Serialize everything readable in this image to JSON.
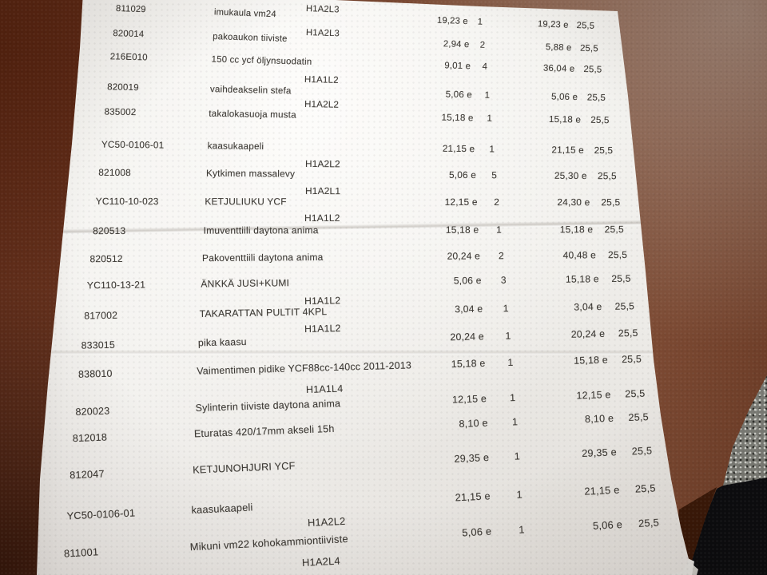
{
  "scene": {
    "description": "photo of printed parts list lying on a wooden table",
    "colors": {
      "paper": "#f2f1ee",
      "wood_dark": "#5e2b1a",
      "wood_mid": "#7a4733",
      "wood_light": "#93766a",
      "table_edge": "#46200f",
      "carpet_gray": "#7e807a",
      "dark_object": "#0b0d11",
      "print_text": "#3b3833"
    }
  },
  "document": {
    "language": "Finnish",
    "currency_mark": "e",
    "vat_rate_shown": "25,5",
    "rows": [
      {
        "code": "811029",
        "desc": "imukaula vm24",
        "loc": "H1A2L3",
        "unit": "19,23 e",
        "qty": "1",
        "total": "19,23 e",
        "vat": "25,5"
      },
      {
        "code": "820014",
        "desc": "pakoaukon tiiviste",
        "loc": "H1A2L3",
        "unit": "2,94 e",
        "qty": "2",
        "total": "5,88 e",
        "vat": "25,5"
      },
      {
        "code": "216E010",
        "desc": "150 cc ycf öljynsuodatin",
        "loc": "",
        "unit": "9,01 e",
        "qty": "4",
        "total": "36,04 e",
        "vat": "25,5"
      },
      {
        "code": "820019",
        "desc": "vaihdeakselin stefa",
        "loc": "H1A1L2",
        "unit": "5,06 e",
        "qty": "1",
        "total": "5,06 e",
        "vat": "25,5"
      },
      {
        "code": "835002",
        "desc": "takalokasuoja musta",
        "loc": "H1A2L2",
        "unit": "15,18 e",
        "qty": "1",
        "total": "15,18 e",
        "vat": "25,5"
      },
      {
        "code": "YC50-0106-01",
        "desc": "kaasukaapeli",
        "loc": "",
        "unit": "21,15 e",
        "qty": "1",
        "total": "21,15 e",
        "vat": "25,5"
      },
      {
        "code": "821008",
        "desc": "Kytkimen massalevy",
        "loc": "H1A2L2",
        "unit": "5,06 e",
        "qty": "5",
        "total": "25,30 e",
        "vat": "25,5"
      },
      {
        "code": "YC110-10-023",
        "desc": "KETJULIUKU YCF",
        "loc": "H1A2L1",
        "unit": "12,15 e",
        "qty": "2",
        "total": "24,30 e",
        "vat": "25,5"
      },
      {
        "code": "820513",
        "desc": "Imuventtiili daytona anima",
        "loc": "H1A1L2",
        "unit": "15,18 e",
        "qty": "1",
        "total": "15,18 e",
        "vat": "25,5"
      },
      {
        "code": "820512",
        "desc": "Pakoventtiili daytona anima",
        "loc": "",
        "unit": "20,24 e",
        "qty": "2",
        "total": "40,48 e",
        "vat": "25,5"
      },
      {
        "code": "YC110-13-21",
        "desc": "ÄNKKÄ JUSI+KUMI",
        "loc": "",
        "unit": "5,06 e",
        "qty": "3",
        "total": "15,18 e",
        "vat": "25,5"
      },
      {
        "code": "817002",
        "desc": "TAKARATTAN PULTIT 4KPL",
        "loc": "H1A1L2",
        "unit": "3,04 e",
        "qty": "1",
        "total": "3,04 e",
        "vat": "25,5"
      },
      {
        "code": "833015",
        "desc": "pika kaasu",
        "loc": "H1A1L2",
        "unit": "20,24 e",
        "qty": "1",
        "total": "20,24 e",
        "vat": "25,5"
      },
      {
        "code": "838010",
        "desc": "Vaimentimen pidike YCF88cc-140cc 2011-2013",
        "loc": "",
        "unit": "15,18 e",
        "qty": "1",
        "total": "15,18 e",
        "vat": "25,5"
      },
      {
        "code": "820023",
        "desc": "Sylinterin tiiviste daytona anima",
        "loc": "H1A1L4",
        "unit": "12,15 e",
        "qty": "1",
        "total": "12,15 e",
        "vat": "25,5"
      },
      {
        "code": "812018",
        "desc": "Eturatas 420/17mm akseli 15h",
        "loc": "",
        "unit": "8,10 e",
        "qty": "1",
        "total": "8,10 e",
        "vat": "25,5"
      },
      {
        "code": "812047",
        "desc": "KETJUNOHJURI YCF",
        "loc": "",
        "unit": "29,35 e",
        "qty": "1",
        "total": "29,35 e",
        "vat": "25,5"
      },
      {
        "code": "YC50-0106-01",
        "desc": "kaasukaapeli",
        "loc": "H1A2L2",
        "unit": "21,15 e",
        "qty": "1",
        "total": "21,15 e",
        "vat": "25,5"
      },
      {
        "code": "811001",
        "desc": "Mikuni vm22 kohokammiontiiviste",
        "loc": "H1A2L4",
        "unit": "5,06 e",
        "qty": "1",
        "total": "5,06 e",
        "vat": "25,5"
      }
    ]
  }
}
